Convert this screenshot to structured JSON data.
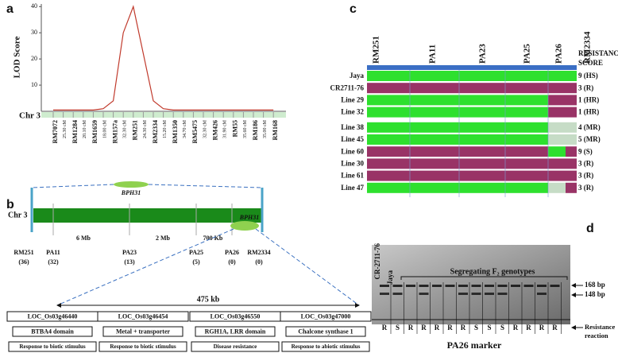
{
  "panel_labels": [
    "a",
    "b",
    "c",
    "d"
  ],
  "chart_data": {
    "type": "line",
    "ylabel": "LOD Score",
    "xlabel": "Chr 3",
    "qtl": "BPH31",
    "categories": [
      "RM7072",
      "25.30 cM",
      "RM1284",
      "20.10 cM",
      "RM1659",
      "18.00 cM",
      "RM157a",
      "32.30 cM",
      "RM251",
      "24.30 cM",
      "RM2334",
      "15.20 cM",
      "RM1350",
      "34.70 cM",
      "RM5475",
      "32.30 cM",
      "RM426",
      "31.90 cM",
      "RM55",
      "35.60 cM",
      "RM186",
      "35.00 cM",
      "RM168"
    ],
    "values": [
      0.5,
      0.5,
      0.5,
      0.5,
      0.5,
      1,
      4,
      30,
      40,
      22,
      4,
      1,
      0.5,
      0.5,
      0.5,
      0.5,
      0.5,
      0.5,
      0.5,
      0.5,
      0.5,
      0.5,
      0.5
    ],
    "color": "#c0392b",
    "ylim": [
      0,
      41
    ],
    "yticks": [
      10,
      20,
      30,
      40
    ]
  },
  "physical_map": {
    "chromosome": "Chr 3",
    "qtl": "BPH31",
    "intervals": [
      "6 Mb",
      "2 Mb",
      "700 Kb"
    ],
    "markers": [
      {
        "name": "RM251",
        "count": "(36)"
      },
      {
        "name": "PA11",
        "count": "(32)"
      },
      {
        "name": "PA23",
        "count": "(13)"
      },
      {
        "name": "PA25",
        "count": "(5)"
      },
      {
        "name": "PA26",
        "count": "(0)"
      },
      {
        "name": "RM2334",
        "count": "(0)"
      }
    ],
    "region": "475 kb",
    "genes": [
      {
        "id": "LOC_Os03g46440",
        "function": "BTBA4 domain",
        "category": "Response to biotic stimulus"
      },
      {
        "id": "LOC_Os03g46454",
        "function": "Metal + transporter",
        "category": "Response to biotic stimulus"
      },
      {
        "id": "LOC_Os03g46550",
        "function": "RGH1A, LRR domain",
        "category": "Disease resistance"
      },
      {
        "id": "LOC_Os03g47000",
        "function": "Chalcone synthase 1",
        "category": "Response to abiotic stimulus"
      }
    ]
  },
  "genotype_table": {
    "columns": [
      "RM251",
      "PA11",
      "PA23",
      "PA25",
      "PA26",
      "RM2334"
    ],
    "score_header": [
      "RESISTANCE",
      "SCORE"
    ],
    "rows": [
      {
        "line": "Jaya",
        "score": "9 (HS)",
        "colors": [
          "#2ee02e",
          "#2ee02e",
          "#2ee02e",
          "#2ee02e",
          "#2ee02e",
          "#2ee02e"
        ]
      },
      {
        "line": "CR2711-76",
        "score": "3 (R)",
        "colors": [
          "#993366",
          "#993366",
          "#993366",
          "#993366",
          "#993366",
          "#993366"
        ]
      },
      {
        "line": "Line 29",
        "score": "1 (HR)",
        "colors": [
          "#2ee02e",
          "#2ee02e",
          "#2ee02e",
          "#2ee02e",
          "#993366",
          "#993366"
        ]
      },
      {
        "line": "Line 32",
        "score": "1 (HR)",
        "colors": [
          "#2ee02e",
          "#2ee02e",
          "#2ee02e",
          "#2ee02e",
          "#993366",
          "#993366"
        ]
      },
      {
        "line": "Line 38",
        "score": "4 (MR)",
        "colors": [
          "#2ee02e",
          "#2ee02e",
          "#2ee02e",
          "#2ee02e",
          "#c6dcc6",
          "#c6dcc6"
        ]
      },
      {
        "line": "Line 45",
        "score": "5 (MR)",
        "colors": [
          "#2ee02e",
          "#2ee02e",
          "#2ee02e",
          "#2ee02e",
          "#c6dcc6",
          "#c6dcc6"
        ]
      },
      {
        "line": "Line 60",
        "score": "9 (S)",
        "colors": [
          "#993366",
          "#993366",
          "#993366",
          "#993366",
          "#2ee02e",
          "#993366"
        ]
      },
      {
        "line": "Line 30",
        "score": "3 (R)",
        "colors": [
          "#993366",
          "#993366",
          "#993366",
          "#993366",
          "#993366",
          "#993366"
        ]
      },
      {
        "line": "Line 61",
        "score": "3 (R)",
        "colors": [
          "#993366",
          "#993366",
          "#993366",
          "#993366",
          "#993366",
          "#993366"
        ]
      },
      {
        "line": "Line 47",
        "score": "3 (R)",
        "colors": [
          "#2ee02e",
          "#2ee02e",
          "#2ee02e",
          "#2ee02e",
          "#c6dcc6",
          "#993366"
        ]
      }
    ]
  },
  "gel": {
    "title": "PA26 marker",
    "parents": [
      "CR-2711-76",
      "Jaya"
    ],
    "group": "Segregating F₂ genotypes",
    "bands": [
      "168 bp",
      "148 bp"
    ],
    "reaction_label": [
      "Resistance",
      "reaction"
    ],
    "reactions": [
      "R",
      "S",
      "R",
      "R",
      "R",
      "R",
      "R",
      "S",
      "S",
      "S",
      "R",
      "R",
      "R",
      "R"
    ]
  }
}
